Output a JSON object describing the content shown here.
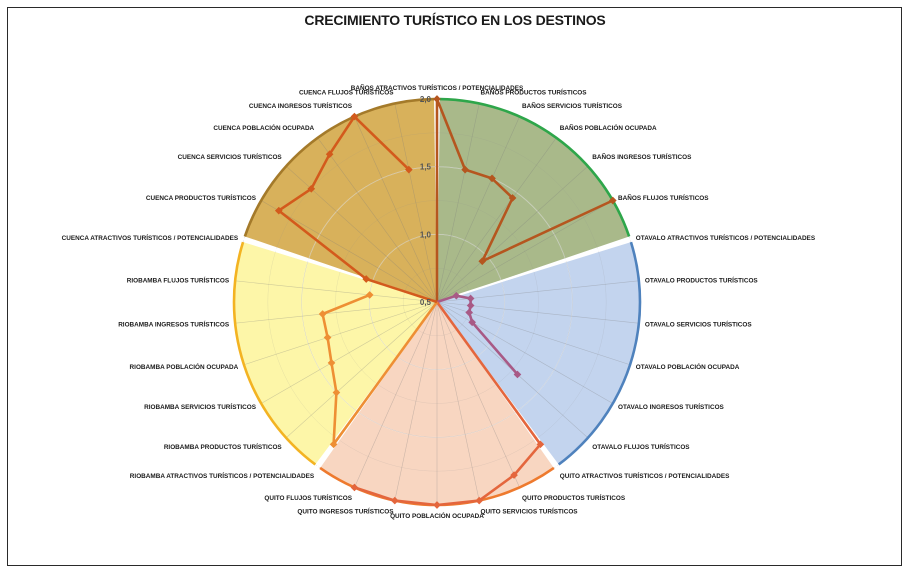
{
  "chart_data": {
    "type": "radar",
    "title": "CRECIMIENTO TURÍSTICO EN LOS DESTINOS",
    "rlim": [
      0.5,
      2.0
    ],
    "ticks": [
      "0,5",
      "1,0",
      "1,5",
      "2,0"
    ],
    "tick_values": [
      0.5,
      1.0,
      1.5,
      2.0
    ],
    "grid": true,
    "legend": "none",
    "series": [
      {
        "destino": "BAÑOS",
        "fill": "#a9b98a",
        "border": "#2ea64a",
        "line": "#b5561f",
        "categories": [
          "BAÑOS ATRACTIVOS TURÍSTICOS / POTENCIALIDADES",
          "BAÑOS PRODUCTOS TURÍSTICOS",
          "BAÑOS SERVICIOS TURÍSTICOS",
          "BAÑOS POBLACIÓN OCUPADA",
          "BAÑOS INGRESOS TURÍSTICOS",
          "BAÑOS FLUJOS TURÍSTICOS"
        ],
        "values": [
          2.0,
          1.5,
          1.5,
          1.45,
          0.95,
          2.0
        ]
      },
      {
        "destino": "OTAVALO",
        "fill": "#c3d4ee",
        "border": "#4f82bd",
        "line": "#a85a86",
        "categories": [
          "OTAVALO ATRACTIVOS TURÍSTICOS / POTENCIALIDADES",
          "OTAVALO PRODUCTOS TURÍSTICOS",
          "OTAVALO SERVICIOS TURÍSTICOS",
          "OTAVALO POBLACIÓN OCUPADA",
          "OTAVALO INGRESOS TURÍSTICOS",
          "OTAVALO FLUJOS TURÍSTICOS"
        ],
        "values": [
          0.65,
          0.75,
          0.75,
          0.75,
          0.8,
          1.3
        ]
      },
      {
        "destino": "QUITO",
        "fill": "#f8d6c1",
        "border": "#ee7a2e",
        "line": "#e4663d",
        "categories": [
          "QUITO ATRACTIVOS TURÍSTICOS / POTENCIALIDADES",
          "QUITO PRODUCTOS TURÍSTICOS",
          "QUITO SERVICIOS TURÍSTICOS",
          "QUITO POBLACIÓN OCUPADA",
          "QUITO INGRESOS TURÍSTICOS",
          "QUITO FLUJOS TURÍSTICOS"
        ],
        "values": [
          1.8,
          1.9,
          2.0,
          2.0,
          2.0,
          2.0
        ]
      },
      {
        "destino": "RIOBAMBA",
        "fill": "#fdf6a8",
        "border": "#f3b322",
        "line": "#ee8f34",
        "categories": [
          "RIOBAMBA ATRACTIVOS TURÍSTICOS / POTENCIALIDADES",
          "RIOBAMBA PRODUCTOS TURÍSTICOS",
          "RIOBAMBA SERVICIOS TURÍSTICOS",
          "RIOBAMBA POBLACIÓN OCUPADA",
          "RIOBAMBA INGRESOS TURÍSTICOS",
          "RIOBAMBA FLUJOS TURÍSTICOS"
        ],
        "values": [
          1.8,
          1.5,
          1.4,
          1.35,
          1.35,
          1.0
        ]
      },
      {
        "destino": "CUENCA",
        "fill": "#d8b15b",
        "border": "#a47a2a",
        "line": "#d35a1c",
        "categories": [
          "CUENCA ATRACTIVOS TURÍSTICOS / POTENCIALIDADES",
          "CUENCA PRODUCTOS TURÍSTICOS",
          "CUENCA SERVICIOS TURÍSTICOS",
          "CUENCA POBLACIÓN OCUPADA",
          "CUENCA INGRESOS TURÍSTICOS",
          "CUENCA FLUJOS TURÍSTICOS"
        ],
        "values": [
          1.05,
          1.85,
          1.75,
          1.85,
          2.0,
          1.5
        ]
      }
    ]
  }
}
